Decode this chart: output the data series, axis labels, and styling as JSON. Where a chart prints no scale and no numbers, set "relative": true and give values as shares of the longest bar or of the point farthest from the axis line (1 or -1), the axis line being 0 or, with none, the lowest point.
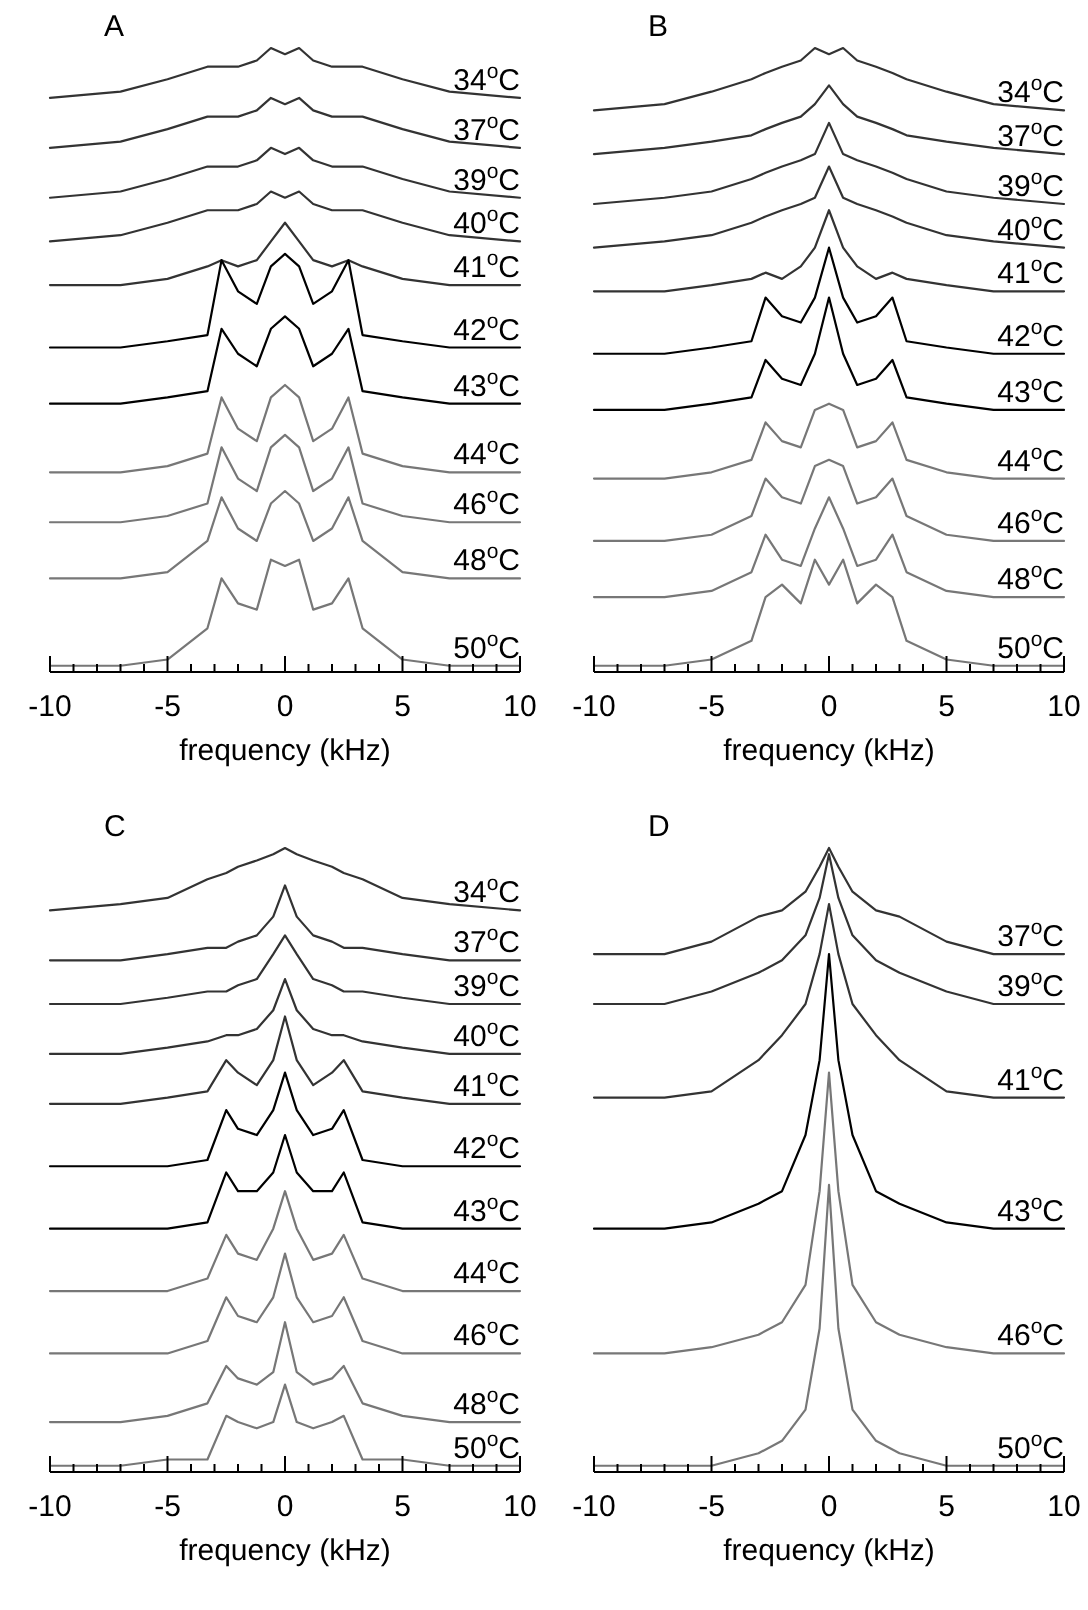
{
  "chart_data": [
    {
      "type": "line",
      "title": "A",
      "xlabel": "frequency (kHz)",
      "relative": true,
      "legend": false,
      "xlim": [
        -10,
        10
      ],
      "xticks": [
        -10,
        {
          "value": -9,
          "label": null
        },
        {
          "value": -8,
          "label": null
        },
        {
          "value": -7,
          "label": null
        },
        {
          "value": -6,
          "label": null
        },
        -5,
        {
          "value": -4,
          "label": null
        },
        {
          "value": -3,
          "label": null
        },
        {
          "value": -2,
          "label": null
        },
        {
          "value": -1,
          "label": null
        },
        0,
        {
          "value": 1,
          "label": null
        },
        {
          "value": 2,
          "label": null
        },
        {
          "value": 3,
          "label": null
        },
        {
          "value": 4,
          "label": null
        },
        5,
        {
          "value": 6,
          "label": null
        },
        {
          "value": 7,
          "label": null
        },
        {
          "value": 8,
          "label": null
        },
        {
          "value": 9,
          "label": null
        },
        10
      ],
      "x": [
        -10,
        -7,
        -5,
        -3.3,
        -2.7,
        -2,
        -1.2,
        -0.6,
        0,
        0.6,
        1.2,
        2,
        2.7,
        3.3,
        5,
        7,
        10
      ],
      "series": [
        {
          "name": "34$^{o}$C",
          "color": "#333333",
          "values": [
            0.92,
            0.93,
            0.95,
            0.97,
            0.97,
            0.97,
            0.98,
            1.0,
            0.99,
            1.0,
            0.98,
            0.97,
            0.97,
            0.97,
            0.95,
            0.93,
            0.92
          ]
        },
        {
          "name": "37$^{o}$C",
          "color": "#333333",
          "values": [
            0.84,
            0.85,
            0.87,
            0.89,
            0.89,
            0.89,
            0.9,
            0.92,
            0.91,
            0.92,
            0.9,
            0.89,
            0.89,
            0.89,
            0.87,
            0.85,
            0.84
          ]
        },
        {
          "name": "39$^{o}$C",
          "color": "#333333",
          "values": [
            0.76,
            0.77,
            0.79,
            0.81,
            0.81,
            0.81,
            0.82,
            0.84,
            0.83,
            0.84,
            0.82,
            0.81,
            0.81,
            0.81,
            0.79,
            0.77,
            0.76
          ]
        },
        {
          "name": "40$^{o}$C",
          "color": "#333333",
          "values": [
            0.69,
            0.7,
            0.72,
            0.74,
            0.74,
            0.74,
            0.75,
            0.77,
            0.76,
            0.77,
            0.75,
            0.74,
            0.74,
            0.74,
            0.72,
            0.7,
            0.69
          ]
        },
        {
          "name": "41$^{o}$C",
          "color": "#333333",
          "values": [
            0.62,
            0.62,
            0.63,
            0.65,
            0.66,
            0.65,
            0.66,
            0.69,
            0.72,
            0.69,
            0.66,
            0.65,
            0.66,
            0.65,
            0.63,
            0.62,
            0.62
          ]
        },
        {
          "name": "42$^{o}$C",
          "color": "#000000",
          "values": [
            0.52,
            0.52,
            0.53,
            0.54,
            0.66,
            0.61,
            0.59,
            0.65,
            0.67,
            0.65,
            0.59,
            0.61,
            0.66,
            0.54,
            0.53,
            0.52,
            0.52
          ]
        },
        {
          "name": "43$^{o}$C",
          "color": "#000000",
          "values": [
            0.43,
            0.43,
            0.44,
            0.45,
            0.55,
            0.51,
            0.49,
            0.55,
            0.57,
            0.55,
            0.49,
            0.51,
            0.55,
            0.45,
            0.44,
            0.43,
            0.43
          ]
        },
        {
          "name": "44$^{o}$C",
          "color": "#777777",
          "values": [
            0.32,
            0.32,
            0.33,
            0.35,
            0.44,
            0.39,
            0.37,
            0.44,
            0.46,
            0.44,
            0.37,
            0.39,
            0.44,
            0.35,
            0.33,
            0.32,
            0.32
          ]
        },
        {
          "name": "46$^{o}$C",
          "color": "#777777",
          "values": [
            0.24,
            0.24,
            0.25,
            0.27,
            0.36,
            0.31,
            0.29,
            0.36,
            0.38,
            0.36,
            0.29,
            0.31,
            0.36,
            0.27,
            0.25,
            0.24,
            0.24
          ]
        },
        {
          "name": "48$^{o}$C",
          "color": "#777777",
          "values": [
            0.15,
            0.15,
            0.16,
            0.21,
            0.28,
            0.23,
            0.21,
            0.27,
            0.29,
            0.27,
            0.21,
            0.23,
            0.28,
            0.21,
            0.16,
            0.15,
            0.15
          ]
        },
        {
          "name": "50$^{o}$C",
          "color": "#777777",
          "values": [
            0.01,
            0.01,
            0.02,
            0.07,
            0.15,
            0.11,
            0.1,
            0.18,
            0.17,
            0.18,
            0.1,
            0.11,
            0.15,
            0.07,
            0.02,
            0.01,
            0.01
          ]
        }
      ]
    },
    {
      "type": "line",
      "title": "B",
      "xlabel": "frequency (kHz)",
      "relative": true,
      "legend": false,
      "xlim": [
        -10,
        10
      ],
      "xticks": [
        -10,
        {
          "value": -9,
          "label": null
        },
        {
          "value": -8,
          "label": null
        },
        {
          "value": -7,
          "label": null
        },
        {
          "value": -6,
          "label": null
        },
        -5,
        {
          "value": -4,
          "label": null
        },
        {
          "value": -3,
          "label": null
        },
        {
          "value": -2,
          "label": null
        },
        {
          "value": -1,
          "label": null
        },
        0,
        {
          "value": 1,
          "label": null
        },
        {
          "value": 2,
          "label": null
        },
        {
          "value": 3,
          "label": null
        },
        {
          "value": 4,
          "label": null
        },
        5,
        {
          "value": 6,
          "label": null
        },
        {
          "value": 7,
          "label": null
        },
        {
          "value": 8,
          "label": null
        },
        {
          "value": 9,
          "label": null
        },
        10
      ],
      "x": [
        -10,
        -7,
        -5,
        -3.3,
        -2.7,
        -2,
        -1.2,
        -0.6,
        0,
        0.6,
        1.2,
        2,
        2.7,
        3.3,
        5,
        7,
        10
      ],
      "series": [
        {
          "name": "34$^{o}$C",
          "color": "#333333",
          "values": [
            0.9,
            0.91,
            0.93,
            0.95,
            0.96,
            0.97,
            0.98,
            1.0,
            0.99,
            1.0,
            0.98,
            0.97,
            0.96,
            0.95,
            0.93,
            0.91,
            0.9
          ]
        },
        {
          "name": "37$^{o}$C",
          "color": "#333333",
          "values": [
            0.83,
            0.84,
            0.85,
            0.86,
            0.87,
            0.88,
            0.89,
            0.91,
            0.94,
            0.91,
            0.89,
            0.88,
            0.87,
            0.86,
            0.85,
            0.84,
            0.83
          ]
        },
        {
          "name": "39$^{o}$C",
          "color": "#333333",
          "values": [
            0.75,
            0.76,
            0.77,
            0.79,
            0.8,
            0.81,
            0.82,
            0.83,
            0.88,
            0.83,
            0.82,
            0.81,
            0.8,
            0.79,
            0.77,
            0.76,
            0.75
          ]
        },
        {
          "name": "40$^{o}$C",
          "color": "#333333",
          "values": [
            0.68,
            0.69,
            0.7,
            0.72,
            0.73,
            0.74,
            0.75,
            0.76,
            0.81,
            0.76,
            0.75,
            0.74,
            0.73,
            0.72,
            0.7,
            0.69,
            0.68
          ]
        },
        {
          "name": "41$^{o}$C",
          "color": "#333333",
          "values": [
            0.61,
            0.61,
            0.62,
            0.63,
            0.64,
            0.63,
            0.65,
            0.68,
            0.74,
            0.68,
            0.65,
            0.63,
            0.64,
            0.63,
            0.62,
            0.61,
            0.61
          ]
        },
        {
          "name": "42$^{o}$C",
          "color": "#000000",
          "values": [
            0.51,
            0.51,
            0.52,
            0.53,
            0.6,
            0.57,
            0.56,
            0.6,
            0.68,
            0.6,
            0.56,
            0.57,
            0.6,
            0.53,
            0.52,
            0.51,
            0.51
          ]
        },
        {
          "name": "43$^{o}$C",
          "color": "#000000",
          "values": [
            0.42,
            0.42,
            0.43,
            0.44,
            0.5,
            0.47,
            0.46,
            0.51,
            0.6,
            0.51,
            0.46,
            0.47,
            0.5,
            0.44,
            0.43,
            0.42,
            0.42
          ]
        },
        {
          "name": "44$^{o}$C",
          "color": "#777777",
          "values": [
            0.31,
            0.31,
            0.32,
            0.34,
            0.4,
            0.37,
            0.36,
            0.42,
            0.43,
            0.42,
            0.36,
            0.37,
            0.4,
            0.34,
            0.32,
            0.31,
            0.31
          ]
        },
        {
          "name": "46$^{o}$C",
          "color": "#777777",
          "values": [
            0.21,
            0.21,
            0.22,
            0.25,
            0.31,
            0.28,
            0.27,
            0.33,
            0.34,
            0.33,
            0.27,
            0.28,
            0.31,
            0.25,
            0.22,
            0.21,
            0.21
          ]
        },
        {
          "name": "48$^{o}$C",
          "color": "#777777",
          "values": [
            0.12,
            0.12,
            0.13,
            0.16,
            0.22,
            0.18,
            0.17,
            0.23,
            0.28,
            0.23,
            0.17,
            0.18,
            0.22,
            0.16,
            0.13,
            0.12,
            0.12
          ]
        },
        {
          "name": "50$^{o}$C",
          "color": "#777777",
          "values": [
            0.01,
            0.01,
            0.02,
            0.05,
            0.12,
            0.14,
            0.11,
            0.18,
            0.14,
            0.18,
            0.11,
            0.14,
            0.12,
            0.05,
            0.02,
            0.01,
            0.01
          ]
        }
      ]
    },
    {
      "type": "line",
      "title": "C",
      "xlabel": "frequency (kHz)",
      "relative": true,
      "legend": false,
      "xlim": [
        -10,
        10
      ],
      "xticks": [
        -10,
        {
          "value": -9,
          "label": null
        },
        {
          "value": -8,
          "label": null
        },
        {
          "value": -7,
          "label": null
        },
        {
          "value": -6,
          "label": null
        },
        -5,
        {
          "value": -4,
          "label": null
        },
        {
          "value": -3,
          "label": null
        },
        {
          "value": -2,
          "label": null
        },
        {
          "value": -1,
          "label": null
        },
        0,
        {
          "value": 1,
          "label": null
        },
        {
          "value": 2,
          "label": null
        },
        {
          "value": 3,
          "label": null
        },
        {
          "value": 4,
          "label": null
        },
        5,
        {
          "value": 6,
          "label": null
        },
        {
          "value": 7,
          "label": null
        },
        {
          "value": 8,
          "label": null
        },
        {
          "value": 9,
          "label": null
        },
        10
      ],
      "x": [
        -10,
        -7,
        -5,
        -3.3,
        -2.5,
        -2,
        -1.2,
        -0.5,
        0,
        0.5,
        1.2,
        2,
        2.5,
        3.3,
        5,
        7,
        10
      ],
      "series": [
        {
          "name": "34$^{o}$C",
          "color": "#333333",
          "values": [
            0.9,
            0.91,
            0.92,
            0.95,
            0.96,
            0.97,
            0.98,
            0.99,
            1.0,
            0.99,
            0.98,
            0.97,
            0.96,
            0.95,
            0.92,
            0.91,
            0.9
          ]
        },
        {
          "name": "37$^{o}$C",
          "color": "#333333",
          "values": [
            0.82,
            0.82,
            0.83,
            0.84,
            0.84,
            0.85,
            0.86,
            0.89,
            0.94,
            0.89,
            0.86,
            0.85,
            0.84,
            0.84,
            0.83,
            0.82,
            0.82
          ]
        },
        {
          "name": "39$^{o}$C",
          "color": "#333333",
          "values": [
            0.75,
            0.75,
            0.76,
            0.77,
            0.77,
            0.78,
            0.79,
            0.83,
            0.86,
            0.83,
            0.79,
            0.78,
            0.77,
            0.77,
            0.76,
            0.75,
            0.75
          ]
        },
        {
          "name": "40$^{o}$C",
          "color": "#333333",
          "values": [
            0.67,
            0.67,
            0.68,
            0.69,
            0.7,
            0.7,
            0.71,
            0.74,
            0.79,
            0.74,
            0.71,
            0.7,
            0.7,
            0.69,
            0.68,
            0.67,
            0.67
          ]
        },
        {
          "name": "41$^{o}$C",
          "color": "#333333",
          "values": [
            0.59,
            0.59,
            0.6,
            0.61,
            0.66,
            0.64,
            0.62,
            0.66,
            0.73,
            0.66,
            0.62,
            0.64,
            0.66,
            0.61,
            0.6,
            0.59,
            0.59
          ]
        },
        {
          "name": "42$^{o}$C",
          "color": "#000000",
          "values": [
            0.49,
            0.49,
            0.49,
            0.5,
            0.58,
            0.55,
            0.54,
            0.58,
            0.64,
            0.58,
            0.54,
            0.55,
            0.58,
            0.5,
            0.49,
            0.49,
            0.49
          ]
        },
        {
          "name": "43$^{o}$C",
          "color": "#000000",
          "values": [
            0.39,
            0.39,
            0.39,
            0.4,
            0.48,
            0.45,
            0.45,
            0.48,
            0.54,
            0.48,
            0.45,
            0.45,
            0.48,
            0.4,
            0.39,
            0.39,
            0.39
          ]
        },
        {
          "name": "44$^{o}$C",
          "color": "#777777",
          "values": [
            0.29,
            0.29,
            0.29,
            0.31,
            0.38,
            0.35,
            0.34,
            0.39,
            0.45,
            0.39,
            0.34,
            0.35,
            0.38,
            0.31,
            0.29,
            0.29,
            0.29
          ]
        },
        {
          "name": "46$^{o}$C",
          "color": "#777777",
          "values": [
            0.19,
            0.19,
            0.19,
            0.21,
            0.28,
            0.25,
            0.24,
            0.28,
            0.35,
            0.28,
            0.24,
            0.25,
            0.28,
            0.21,
            0.19,
            0.19,
            0.19
          ]
        },
        {
          "name": "48$^{o}$C",
          "color": "#777777",
          "values": [
            0.08,
            0.08,
            0.09,
            0.11,
            0.17,
            0.15,
            0.14,
            0.16,
            0.24,
            0.16,
            0.14,
            0.15,
            0.17,
            0.11,
            0.09,
            0.08,
            0.08
          ]
        },
        {
          "name": "50$^{o}$C",
          "color": "#777777",
          "values": [
            0.01,
            0.01,
            0.02,
            0.02,
            0.09,
            0.08,
            0.07,
            0.08,
            0.14,
            0.08,
            0.07,
            0.08,
            0.09,
            0.02,
            0.02,
            0.01,
            0.01
          ]
        }
      ]
    },
    {
      "type": "line",
      "title": "D",
      "xlabel": "frequency (kHz)",
      "relative": true,
      "legend": false,
      "xlim": [
        -10,
        10
      ],
      "xticks": [
        -10,
        {
          "value": -9,
          "label": null
        },
        {
          "value": -8,
          "label": null
        },
        {
          "value": -7,
          "label": null
        },
        {
          "value": -6,
          "label": null
        },
        -5,
        {
          "value": -4,
          "label": null
        },
        {
          "value": -3,
          "label": null
        },
        {
          "value": -2,
          "label": null
        },
        {
          "value": -1,
          "label": null
        },
        0,
        {
          "value": 1,
          "label": null
        },
        {
          "value": 2,
          "label": null
        },
        {
          "value": 3,
          "label": null
        },
        {
          "value": 4,
          "label": null
        },
        5,
        {
          "value": 6,
          "label": null
        },
        {
          "value": 7,
          "label": null
        },
        {
          "value": 8,
          "label": null
        },
        {
          "value": 9,
          "label": null
        },
        10
      ],
      "x": [
        -10,
        -7,
        -5,
        -3,
        -2,
        -1,
        -0.4,
        0,
        0.4,
        1,
        2,
        3,
        5,
        7,
        10
      ],
      "series": [
        {
          "name": "37$^{o}$C",
          "color": "#333333",
          "values": [
            0.83,
            0.83,
            0.85,
            0.89,
            0.9,
            0.93,
            0.97,
            1.0,
            0.97,
            0.93,
            0.9,
            0.89,
            0.85,
            0.83,
            0.83
          ]
        },
        {
          "name": "39$^{o}$C",
          "color": "#333333",
          "values": [
            0.75,
            0.75,
            0.77,
            0.8,
            0.82,
            0.86,
            0.92,
            0.99,
            0.92,
            0.86,
            0.82,
            0.8,
            0.77,
            0.75,
            0.75
          ]
        },
        {
          "name": "41$^{o}$C",
          "color": "#333333",
          "values": [
            0.6,
            0.6,
            0.61,
            0.66,
            0.7,
            0.75,
            0.83,
            0.91,
            0.83,
            0.75,
            0.7,
            0.66,
            0.61,
            0.6,
            0.6
          ]
        },
        {
          "name": "43$^{o}$C",
          "color": "#000000",
          "values": [
            0.39,
            0.39,
            0.4,
            0.43,
            0.45,
            0.54,
            0.66,
            0.83,
            0.66,
            0.54,
            0.45,
            0.43,
            0.4,
            0.39,
            0.39
          ]
        },
        {
          "name": "46$^{o}$C",
          "color": "#777777",
          "values": [
            0.19,
            0.19,
            0.2,
            0.22,
            0.24,
            0.3,
            0.45,
            0.64,
            0.45,
            0.3,
            0.24,
            0.22,
            0.2,
            0.19,
            0.19
          ]
        },
        {
          "name": "50$^{o}$C",
          "color": "#777777",
          "values": [
            0.01,
            0.01,
            0.01,
            0.03,
            0.05,
            0.1,
            0.23,
            0.46,
            0.23,
            0.1,
            0.05,
            0.03,
            0.01,
            0.01,
            0.01
          ]
        }
      ]
    }
  ]
}
